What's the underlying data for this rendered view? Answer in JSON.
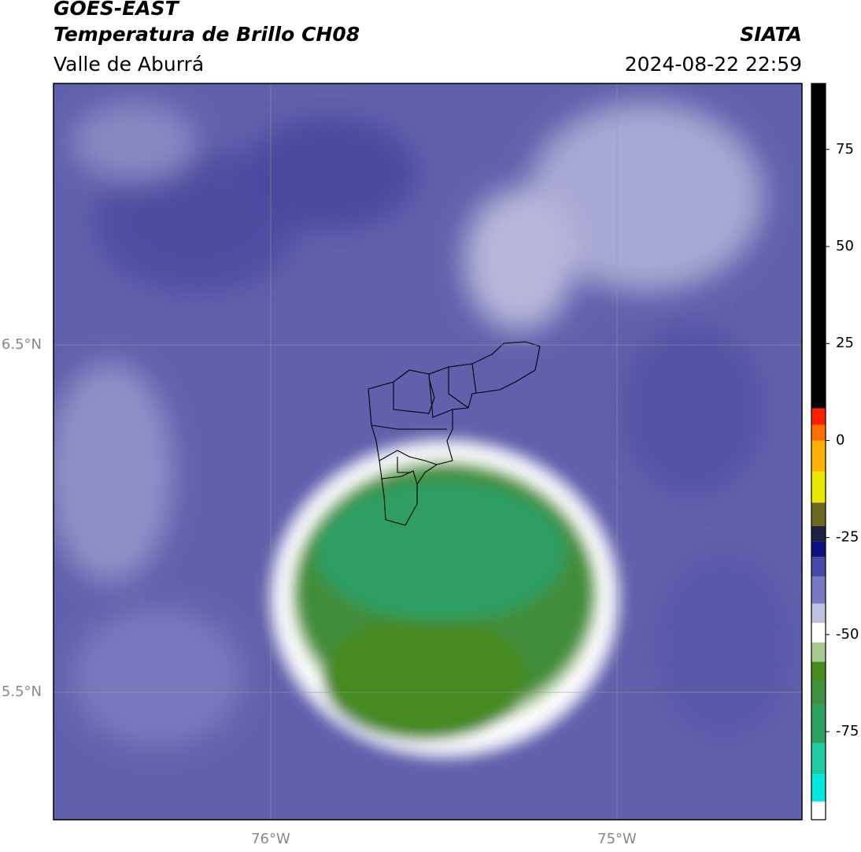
{
  "header": {
    "title": "GOES-EAST",
    "subtitle": "Temperatura de Brillo CH08",
    "region": "Valle de Aburrá",
    "source": "SIATA",
    "datetime": "2024-08-22 22:59"
  },
  "map": {
    "xlim": [
      -76.627,
      -74.466
    ],
    "ylim": [
      5.133,
      7.253
    ],
    "xticks": [
      {
        "value": -76,
        "label": "76°W"
      },
      {
        "value": -75,
        "label": "75°W"
      }
    ],
    "yticks": [
      {
        "value": 5.5,
        "label": "5.5°N"
      },
      {
        "value": 6.5,
        "label": "6.5°N"
      }
    ],
    "grid": true
  },
  "colorbar": {
    "lim": [
      -97.7,
      92
    ],
    "ticks": [
      -75,
      -50,
      -25,
      0,
      25,
      50,
      75
    ],
    "stops": [
      {
        "value": -97.7,
        "color": "#ffffff"
      },
      {
        "value": -93,
        "color": "#00e8e0"
      },
      {
        "value": -86,
        "color": "#22c8a0"
      },
      {
        "value": -78,
        "color": "#30a060"
      },
      {
        "value": -68,
        "color": "#3f9040"
      },
      {
        "value": -62,
        "color": "#4a8a22"
      },
      {
        "value": -57,
        "color": "#a8c890"
      },
      {
        "value": -52,
        "color": "#ffffff"
      },
      {
        "value": -47,
        "color": "#c0c0e0"
      },
      {
        "value": -42,
        "color": "#7878c0"
      },
      {
        "value": -35,
        "color": "#4848a8"
      },
      {
        "value": -30,
        "color": "#101080"
      },
      {
        "value": -26,
        "color": "#202040"
      },
      {
        "value": -22,
        "color": "#6a6a20"
      },
      {
        "value": -16,
        "color": "#e8e800"
      },
      {
        "value": -8,
        "color": "#ffb000"
      },
      {
        "value": 0,
        "color": "#ff7000"
      },
      {
        "value": 4,
        "color": "#ff2000"
      },
      {
        "value": 8.3,
        "color": "#000000"
      }
    ]
  }
}
